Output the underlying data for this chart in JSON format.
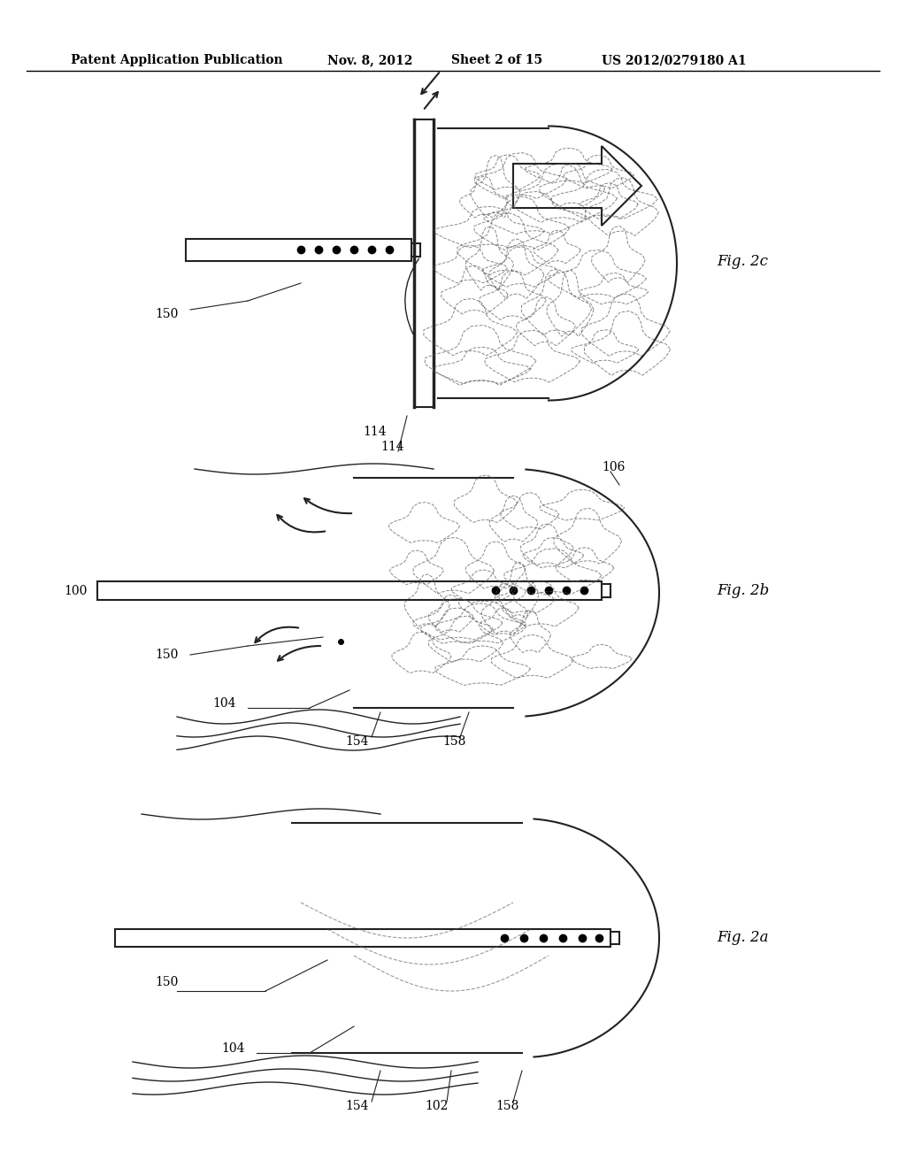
{
  "bg_color": "#ffffff",
  "header_text": "Patent Application Publication",
  "header_date": "Nov. 8, 2012",
  "header_sheet": "Sheet 2 of 15",
  "header_patent": "US 2012/0279180 A1",
  "fig_labels": [
    "Fig. 2c",
    "Fig. 2b",
    "Fig. 2a"
  ],
  "ref_labels_2c": [
    "150",
    "114"
  ],
  "ref_labels_2b": [
    "100",
    "150",
    "104",
    "154",
    "158",
    "106"
  ],
  "ref_labels_2a": [
    "150",
    "104",
    "154",
    "102",
    "158"
  ]
}
